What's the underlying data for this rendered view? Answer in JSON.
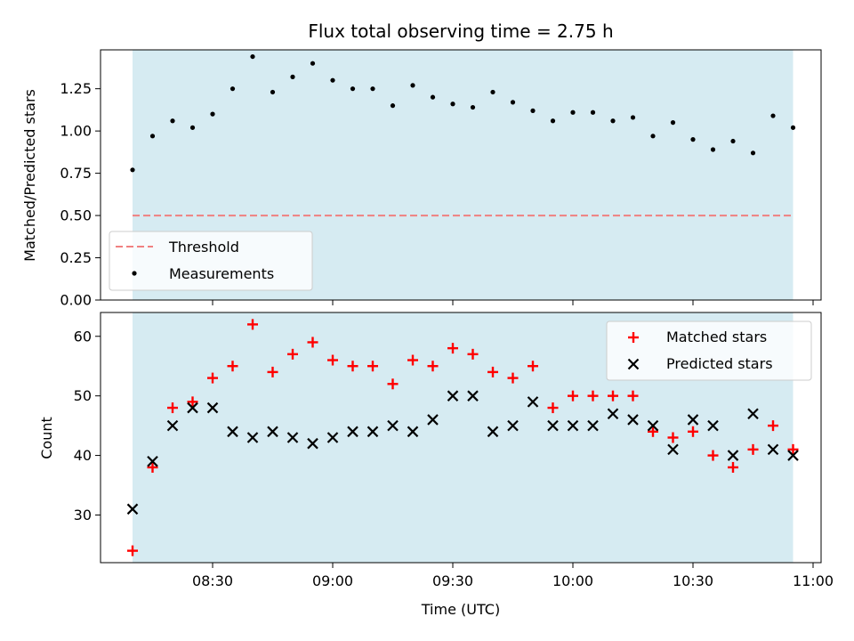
{
  "title": "Flux total observing time = 2.75 h",
  "colors": {
    "matched": "#ff0000",
    "predicted": "#000000",
    "measurements": "#000000",
    "threshold": "#f08080",
    "span": "#add8e6"
  },
  "chart_data": [
    {
      "type": "scatter",
      "panel": "top",
      "ylabel": "Matched/Predicted stars",
      "xlabel": "",
      "ylim": [
        0.0,
        1.48
      ],
      "xlim": [
        "08:02",
        "11:02"
      ],
      "yticks": [
        0.0,
        0.25,
        0.5,
        0.75,
        1.0,
        1.25
      ],
      "ytick_labels": [
        "0.00",
        "0.25",
        "0.50",
        "0.75",
        "1.00",
        "1.25"
      ],
      "shaded_span": [
        "08:10",
        "10:55"
      ],
      "threshold": 0.5,
      "legend_position": "lower-left",
      "legend": [
        {
          "key": "threshold",
          "label": "Threshold",
          "style": "dashed-line"
        },
        {
          "key": "measurements",
          "label": "Measurements",
          "style": "dot"
        }
      ],
      "series": [
        {
          "name": "Measurements",
          "x": [
            "08:10",
            "08:15",
            "08:20",
            "08:25",
            "08:30",
            "08:35",
            "08:40",
            "08:45",
            "08:50",
            "08:55",
            "09:00",
            "09:05",
            "09:10",
            "09:15",
            "09:20",
            "09:25",
            "09:30",
            "09:35",
            "09:40",
            "09:45",
            "09:50",
            "09:55",
            "10:00",
            "10:05",
            "10:10",
            "10:15",
            "10:20",
            "10:25",
            "10:30",
            "10:35",
            "10:40",
            "10:45",
            "10:50",
            "10:55"
          ],
          "y": [
            0.77,
            0.97,
            1.06,
            1.02,
            1.1,
            1.25,
            1.44,
            1.23,
            1.32,
            1.4,
            1.3,
            1.25,
            1.25,
            1.15,
            1.27,
            1.2,
            1.16,
            1.14,
            1.23,
            1.17,
            1.12,
            1.06,
            1.11,
            1.11,
            1.06,
            1.08,
            0.97,
            1.05,
            0.95,
            0.89,
            0.94,
            0.87,
            1.09,
            1.02
          ]
        }
      ]
    },
    {
      "type": "scatter",
      "panel": "bottom",
      "ylabel": "Count",
      "xlabel": "Time (UTC)",
      "ylim": [
        22,
        64
      ],
      "xlim": [
        "08:02",
        "11:02"
      ],
      "yticks": [
        30,
        40,
        50,
        60
      ],
      "ytick_labels": [
        "30",
        "40",
        "50",
        "60"
      ],
      "xticks": [
        "08:30",
        "09:00",
        "09:30",
        "10:00",
        "10:30",
        "11:00"
      ],
      "shaded_span": [
        "08:10",
        "10:55"
      ],
      "legend_position": "upper-right",
      "legend": [
        {
          "key": "matched",
          "label": "Matched stars",
          "style": "plus"
        },
        {
          "key": "predicted",
          "label": "Predicted stars",
          "style": "x"
        }
      ],
      "series": [
        {
          "name": "Matched stars",
          "x": [
            "08:10",
            "08:15",
            "08:20",
            "08:25",
            "08:30",
            "08:35",
            "08:40",
            "08:45",
            "08:50",
            "08:55",
            "09:00",
            "09:05",
            "09:10",
            "09:15",
            "09:20",
            "09:25",
            "09:30",
            "09:35",
            "09:40",
            "09:45",
            "09:50",
            "09:55",
            "10:00",
            "10:05",
            "10:10",
            "10:15",
            "10:20",
            "10:25",
            "10:30",
            "10:35",
            "10:40",
            "10:45",
            "10:50",
            "10:55"
          ],
          "y": [
            24,
            38,
            48,
            49,
            53,
            55,
            62,
            54,
            57,
            59,
            56,
            55,
            55,
            52,
            56,
            55,
            58,
            57,
            54,
            53,
            55,
            48,
            50,
            50,
            50,
            50,
            44,
            43,
            44,
            40,
            38,
            41,
            45,
            41
          ]
        },
        {
          "name": "Predicted stars",
          "x": [
            "08:10",
            "08:15",
            "08:20",
            "08:25",
            "08:30",
            "08:35",
            "08:40",
            "08:45",
            "08:50",
            "08:55",
            "09:00",
            "09:05",
            "09:10",
            "09:15",
            "09:20",
            "09:25",
            "09:30",
            "09:35",
            "09:40",
            "09:45",
            "09:50",
            "09:55",
            "10:00",
            "10:05",
            "10:10",
            "10:15",
            "10:20",
            "10:25",
            "10:30",
            "10:35",
            "10:40",
            "10:45",
            "10:50",
            "10:55"
          ],
          "y": [
            31,
            39,
            45,
            48,
            48,
            44,
            43,
            44,
            43,
            42,
            43,
            44,
            44,
            45,
            44,
            46,
            50,
            50,
            44,
            45,
            49,
            45,
            45,
            45,
            47,
            46,
            45,
            41,
            46,
            45,
            40,
            47,
            41,
            40
          ]
        }
      ]
    }
  ]
}
